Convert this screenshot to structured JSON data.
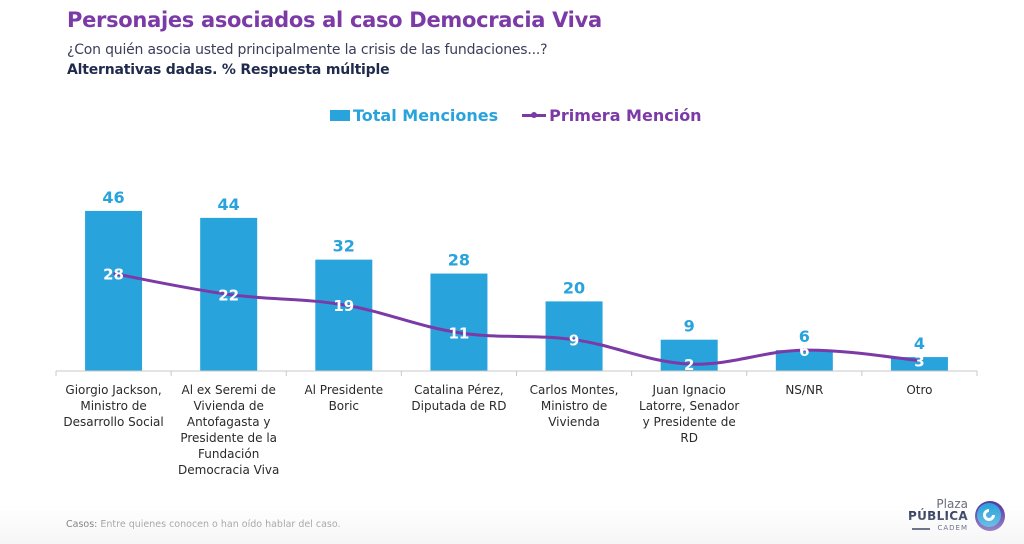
{
  "header": {
    "title": "Personajes asociados al caso Democracia Viva",
    "question": "¿Con quién asocia usted principalmente la crisis de las fundaciones...?",
    "note": "Alternativas dadas. % Respuesta múltiple"
  },
  "colors": {
    "bar": "#29a3dc",
    "line": "#7b3aa6",
    "title": "#7b3aa6"
  },
  "chart_data": {
    "type": "bar",
    "title": "Personajes asociados al caso Democracia Viva",
    "xlabel": "",
    "ylabel": "",
    "ylim": [
      0,
      50
    ],
    "grid": false,
    "legend_position": "top-center",
    "categories": [
      "Giorgio Jackson, Ministro de Desarrollo Social",
      "Al ex Seremi de Vivienda de Antofagasta y Presidente de la Fundación Democracia Viva",
      "Al Presidente Boric",
      "Catalina Pérez, Diputada de RD",
      "Carlos Montes, Ministro de Vivienda",
      "Juan Ignacio Latorre, Senador y Presidente de RD",
      "NS/NR",
      "Otro"
    ],
    "series": [
      {
        "name": "Total Menciones",
        "type": "bar",
        "values": [
          46,
          44,
          32,
          28,
          20,
          9,
          6,
          4
        ]
      },
      {
        "name": "Primera Mención",
        "type": "line",
        "values": [
          28,
          22,
          19,
          11,
          9,
          2,
          6,
          3
        ]
      }
    ]
  },
  "legend": {
    "bar_label": "Total Menciones",
    "line_label": "Primera Mención"
  },
  "footnote": {
    "label": "Casos:",
    "text": " Entre quienes conocen o han oído hablar del caso."
  },
  "logo": {
    "line1": "Plaza",
    "line2": "PÚBLICA",
    "line3": "CADEM"
  }
}
